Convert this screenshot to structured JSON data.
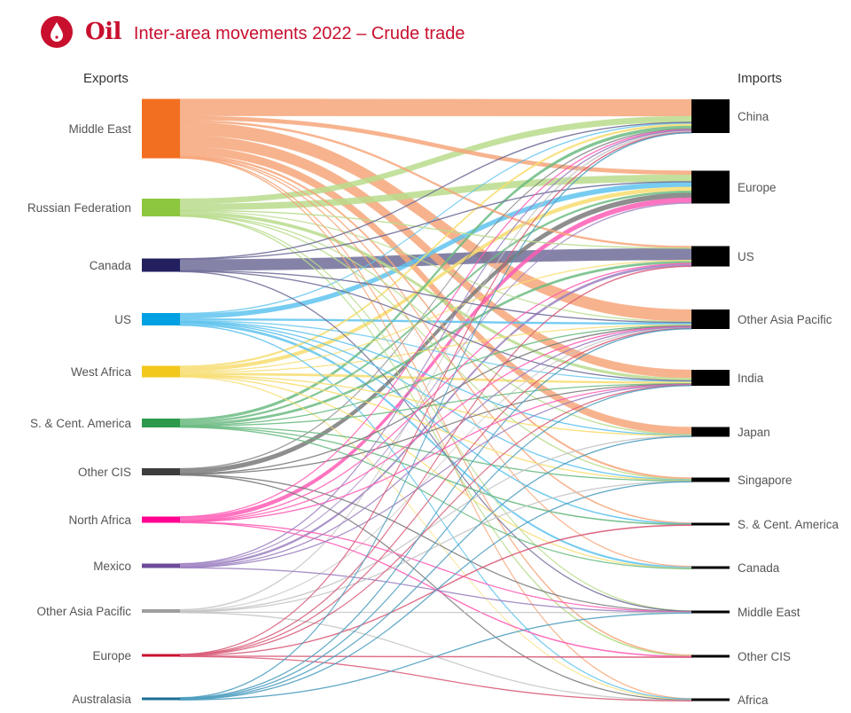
{
  "header": {
    "brand": "Oil",
    "title": "Inter-area movements 2022 – Crude trade",
    "icon": "oil-drop-icon"
  },
  "chart_data": {
    "type": "sankey",
    "title": "Inter-area movements 2022 – Crude trade",
    "left_heading": "Exports",
    "right_heading": "Imports",
    "units": "relative volume (estimated from bar heights; no values printed)",
    "exporters": [
      {
        "name": "Middle East",
        "color": "#f26f21",
        "flow_color": "#f6a67a",
        "total": 67
      },
      {
        "name": "Russian Federation",
        "color": "#8dc63f",
        "flow_color": "#b9dc8c",
        "total": 20
      },
      {
        "name": "Canada",
        "color": "#23205f",
        "flow_color": "#6f6d98",
        "total": 15
      },
      {
        "name": "US",
        "color": "#00a0e3",
        "flow_color": "#5fc3ee",
        "total": 14
      },
      {
        "name": "West Africa",
        "color": "#f2c81d",
        "flow_color": "#f7dd70",
        "total": 13
      },
      {
        "name": "S. & Cent. America",
        "color": "#2c9a4a",
        "flow_color": "#6cbb83",
        "total": 10
      },
      {
        "name": "Other CIS",
        "color": "#3d3d3d",
        "flow_color": "#7a7a7a",
        "total": 8
      },
      {
        "name": "North Africa",
        "color": "#ff0090",
        "flow_color": "#ff5cb5",
        "total": 7
      },
      {
        "name": "Mexico",
        "color": "#6e4a9b",
        "flow_color": "#9b7fc0",
        "total": 5
      },
      {
        "name": "Other Asia Pacific",
        "color": "#9e9e9e",
        "flow_color": "#c4c4c4",
        "total": 4
      },
      {
        "name": "Europe",
        "color": "#c8102e",
        "flow_color": "#d85a77",
        "total": 3
      },
      {
        "name": "Australasia",
        "color": "#1a6e93",
        "flow_color": "#4e9ebf",
        "total": 3
      }
    ],
    "importers": [
      {
        "name": "China",
        "total": 38
      },
      {
        "name": "Europe",
        "total": 37
      },
      {
        "name": "US",
        "total": 23
      },
      {
        "name": "Other Asia Pacific",
        "total": 22
      },
      {
        "name": "India",
        "total": 18
      },
      {
        "name": "Japan",
        "total": 11
      },
      {
        "name": "Singapore",
        "total": 5
      },
      {
        "name": "S. & Cent. America",
        "total": 3
      },
      {
        "name": "Canada",
        "total": 3
      },
      {
        "name": "Middle East",
        "total": 3
      },
      {
        "name": "Other CIS",
        "total": 3
      },
      {
        "name": "Africa",
        "total": 3
      }
    ],
    "flows": [
      [
        "Middle East",
        "China",
        17
      ],
      [
        "Middle East",
        "Europe",
        4
      ],
      [
        "Middle East",
        "US",
        2
      ],
      [
        "Middle East",
        "Other Asia Pacific",
        13
      ],
      [
        "Middle East",
        "India",
        11
      ],
      [
        "Middle East",
        "Japan",
        8
      ],
      [
        "Middle East",
        "Singapore",
        2
      ],
      [
        "Middle East",
        "S. & Cent. America",
        0.5
      ],
      [
        "Middle East",
        "Canada",
        0.5
      ],
      [
        "Middle East",
        "Other CIS",
        0.5
      ],
      [
        "Middle East",
        "Africa",
        0.5
      ],
      [
        "Russian Federation",
        "China",
        6
      ],
      [
        "Russian Federation",
        "Europe",
        7
      ],
      [
        "Russian Federation",
        "US",
        0.5
      ],
      [
        "Russian Federation",
        "Other Asia Pacific",
        1
      ],
      [
        "Russian Federation",
        "India",
        3.5
      ],
      [
        "Russian Federation",
        "Japan",
        0.5
      ],
      [
        "Russian Federation",
        "Singapore",
        0.5
      ],
      [
        "Russian Federation",
        "Middle East",
        0.5
      ],
      [
        "Russian Federation",
        "Other CIS",
        0.5
      ],
      [
        "Canada",
        "China",
        0.5
      ],
      [
        "Canada",
        "Europe",
        0.5
      ],
      [
        "Canada",
        "US",
        12.5
      ],
      [
        "Canada",
        "Other Asia Pacific",
        0.5
      ],
      [
        "Canada",
        "India",
        0.5
      ],
      [
        "Canada",
        "Middle East",
        0.5
      ],
      [
        "US",
        "China",
        1
      ],
      [
        "US",
        "Europe",
        5
      ],
      [
        "US",
        "US",
        0
      ],
      [
        "US",
        "Other Asia Pacific",
        2
      ],
      [
        "US",
        "India",
        1
      ],
      [
        "US",
        "Japan",
        0.5
      ],
      [
        "US",
        "Singapore",
        0.5
      ],
      [
        "US",
        "S. & Cent. America",
        0.5
      ],
      [
        "US",
        "Canada",
        2.5
      ],
      [
        "US",
        "Africa",
        0.5
      ],
      [
        "West Africa",
        "China",
        2
      ],
      [
        "West Africa",
        "Europe",
        4
      ],
      [
        "West Africa",
        "US",
        1
      ],
      [
        "West Africa",
        "Other Asia Pacific",
        1
      ],
      [
        "West Africa",
        "India",
        2.5
      ],
      [
        "West Africa",
        "Japan",
        0.5
      ],
      [
        "West Africa",
        "Singapore",
        0.5
      ],
      [
        "West Africa",
        "Canada",
        0.5
      ],
      [
        "West Africa",
        "Africa",
        1
      ],
      [
        "S. & Cent. America",
        "China",
        3
      ],
      [
        "S. & Cent. America",
        "Europe",
        2
      ],
      [
        "S. & Cent. America",
        "US",
        2.5
      ],
      [
        "S. & Cent. America",
        "Other Asia Pacific",
        0.5
      ],
      [
        "S. & Cent. America",
        "India",
        0.5
      ],
      [
        "S. & Cent. America",
        "Singapore",
        0.5
      ],
      [
        "S. & Cent. America",
        "S. & Cent. America",
        0.5
      ],
      [
        "S. & Cent. America",
        "Canada",
        0.5
      ],
      [
        "Other CIS",
        "China",
        1
      ],
      [
        "Other CIS",
        "Europe",
        5
      ],
      [
        "Other CIS",
        "Other Asia Pacific",
        0.5
      ],
      [
        "Other CIS",
        "India",
        0.5
      ],
      [
        "Other CIS",
        "Middle East",
        0.5
      ],
      [
        "Other CIS",
        "Africa",
        0.5
      ],
      [
        "North Africa",
        "China",
        0.5
      ],
      [
        "North Africa",
        "Europe",
        5
      ],
      [
        "North Africa",
        "US",
        0.5
      ],
      [
        "North Africa",
        "Other Asia Pacific",
        0.5
      ],
      [
        "North Africa",
        "India",
        0.5
      ],
      [
        "North Africa",
        "Middle East",
        0.5
      ],
      [
        "North Africa",
        "Other CIS",
        0.5
      ],
      [
        "Mexico",
        "China",
        0.5
      ],
      [
        "Mexico",
        "Europe",
        1
      ],
      [
        "Mexico",
        "US",
        2.5
      ],
      [
        "Mexico",
        "Other Asia Pacific",
        0.5
      ],
      [
        "Mexico",
        "India",
        0.5
      ],
      [
        "Mexico",
        "Middle East",
        0.5
      ],
      [
        "Other Asia Pacific",
        "China",
        1.5
      ],
      [
        "Other Asia Pacific",
        "Other Asia Pacific",
        1
      ],
      [
        "Other Asia Pacific",
        "Japan",
        0.5
      ],
      [
        "Other Asia Pacific",
        "Singapore",
        0.5
      ],
      [
        "Other Asia Pacific",
        "Middle East",
        0.5
      ],
      [
        "Other Asia Pacific",
        "Africa",
        0.5
      ],
      [
        "Europe",
        "China",
        0.5
      ],
      [
        "Europe",
        "US",
        0.5
      ],
      [
        "Europe",
        "Other Asia Pacific",
        0.5
      ],
      [
        "Europe",
        "India",
        0.5
      ],
      [
        "Europe",
        "S. & Cent. America",
        0.5
      ],
      [
        "Europe",
        "Other CIS",
        0.5
      ],
      [
        "Europe",
        "Africa",
        0.5
      ],
      [
        "Australasia",
        "China",
        0.5
      ],
      [
        "Australasia",
        "Other Asia Pacific",
        0.5
      ],
      [
        "Australasia",
        "India",
        0.5
      ],
      [
        "Australasia",
        "Japan",
        0.5
      ],
      [
        "Australasia",
        "Singapore",
        0.5
      ],
      [
        "Australasia",
        "Middle East",
        0.5
      ]
    ]
  }
}
